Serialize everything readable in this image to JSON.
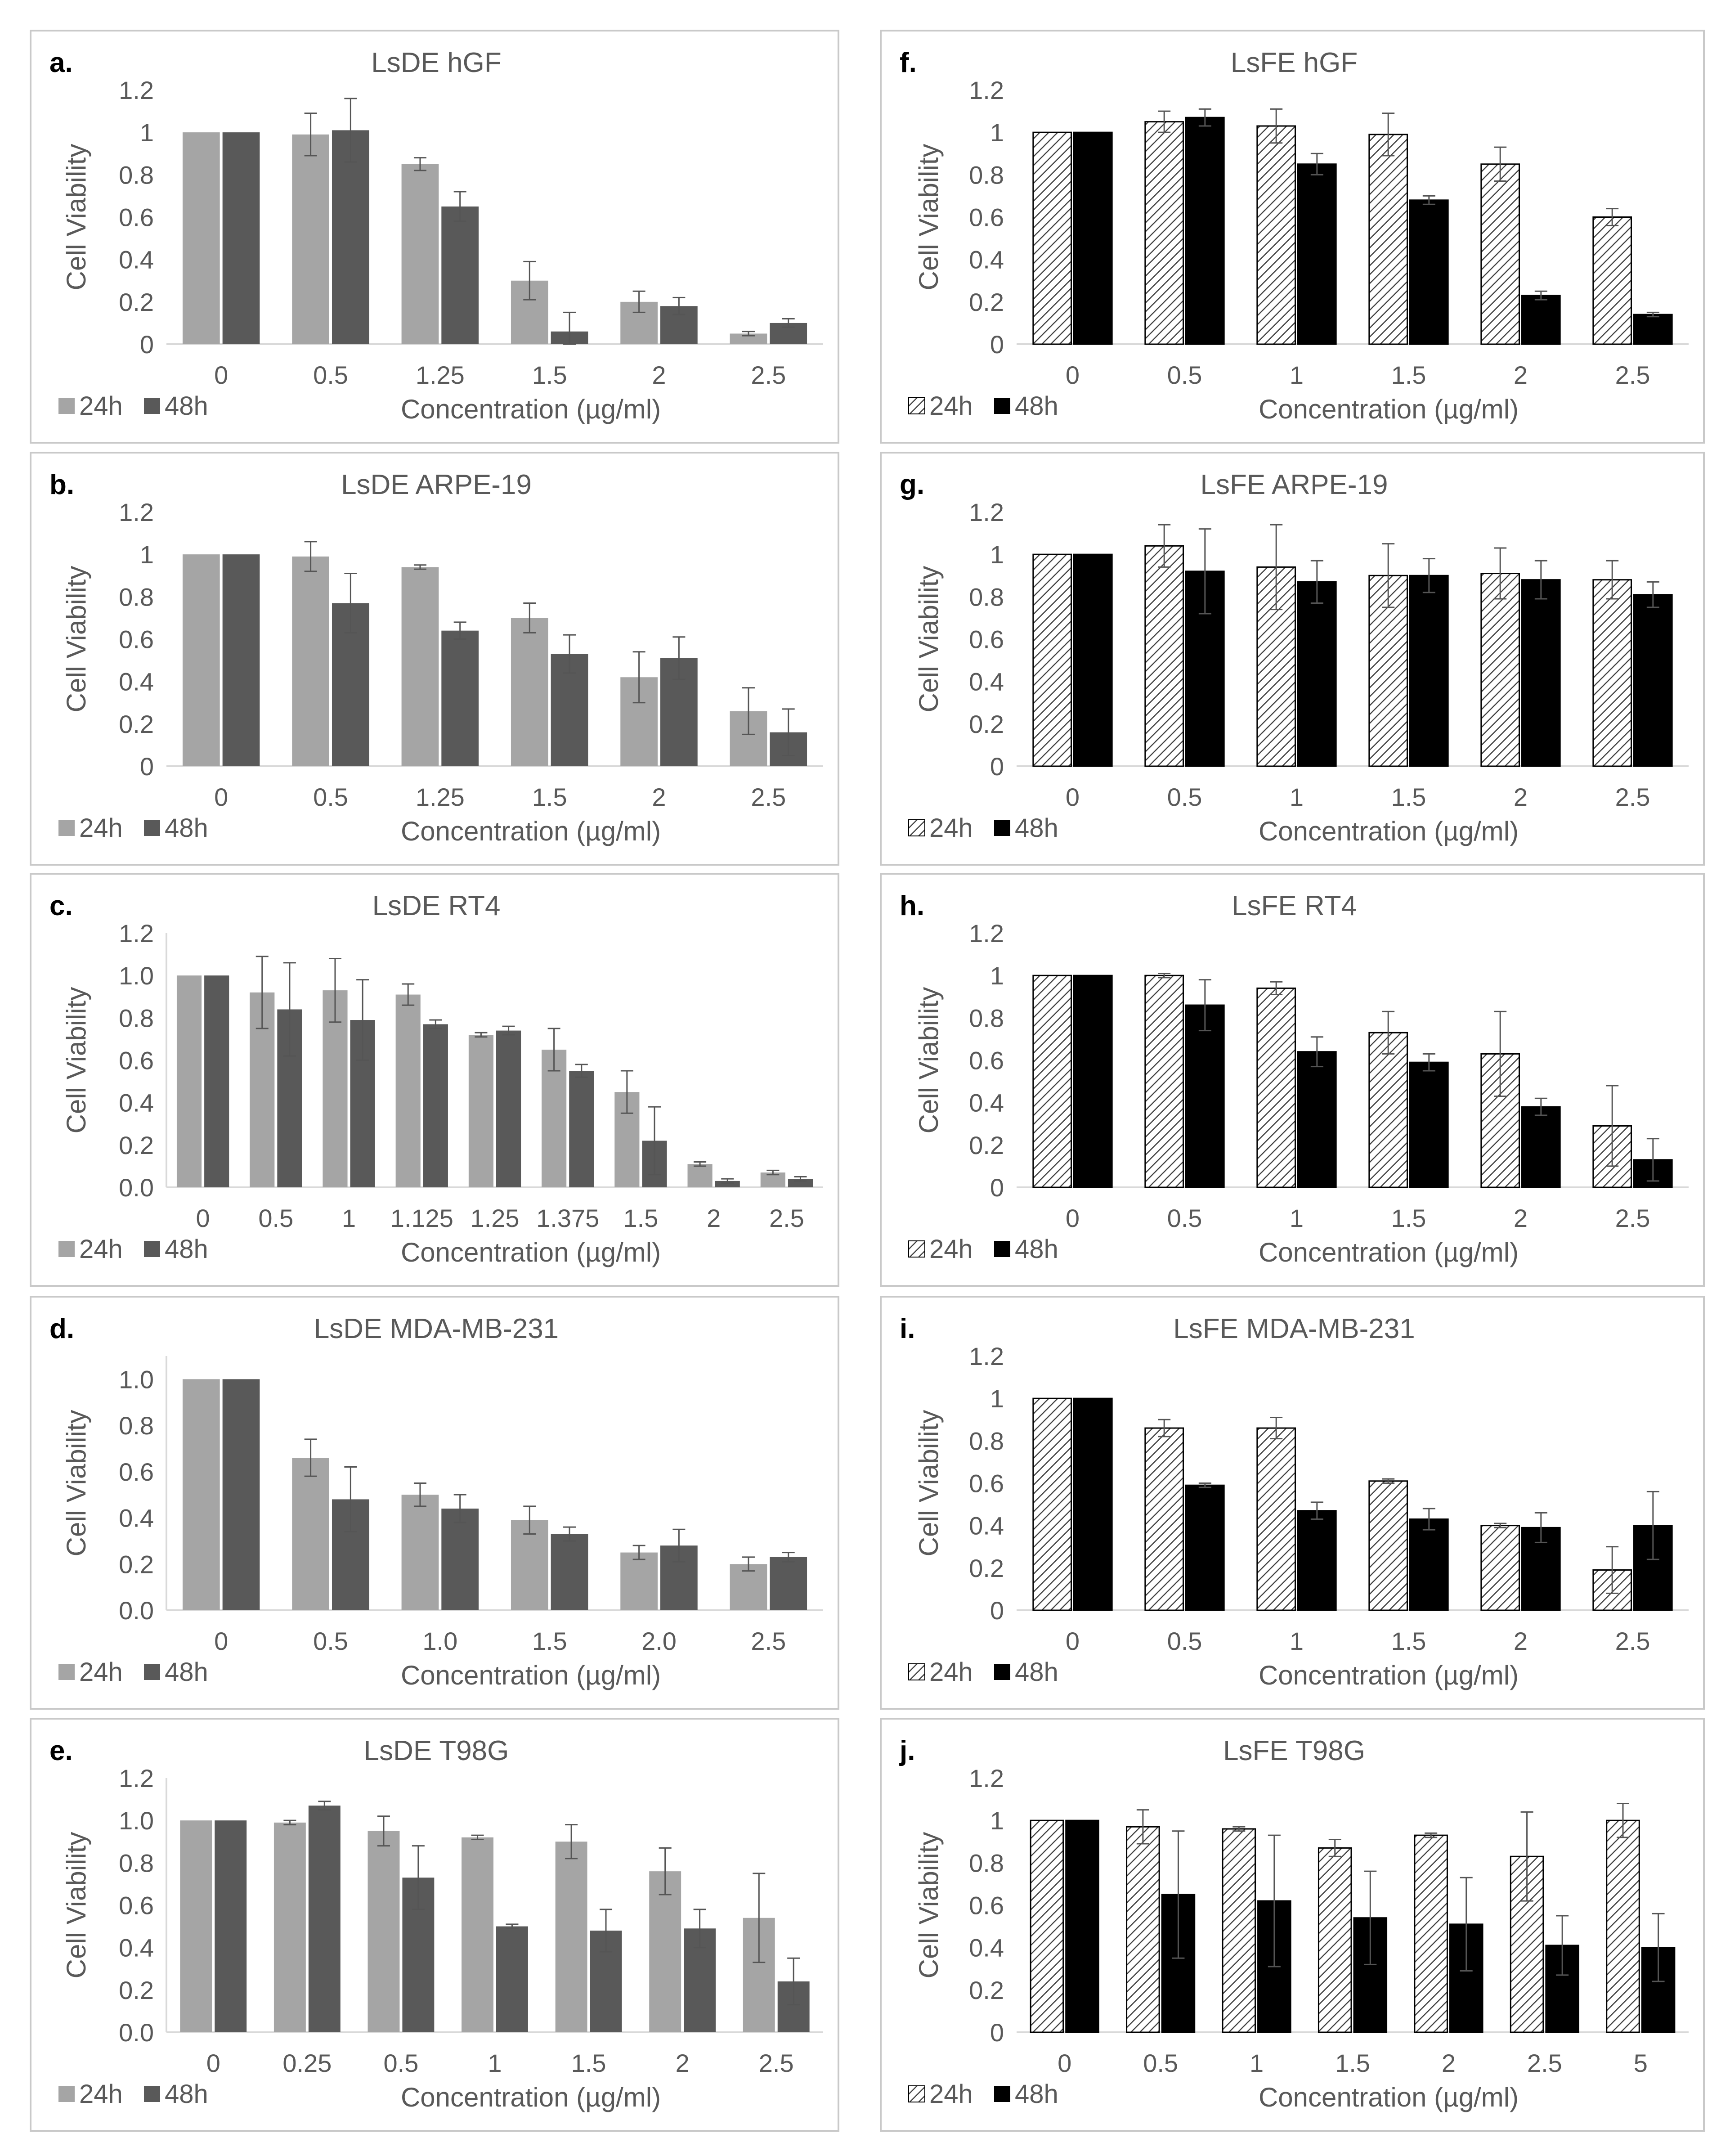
{
  "colors": {
    "dark_24h": "#a5a5a5",
    "dark_48h": "#595959",
    "fe_24h_hatch": "#404040",
    "fe_48h": "#000000",
    "axis_text": "#595959",
    "gridline": "#d9d9d9",
    "panel_border": "#c9c9c9",
    "error_bar": "#555555"
  },
  "chart_data": [
    {
      "id": "a",
      "panel_letter": "a.",
      "type": "bar",
      "style": "solid",
      "title": "LsDE hGF",
      "xlabel": "Concentration (µg/ml)",
      "ylabel": "Cell Viability",
      "categories": [
        "0",
        "0.5",
        "1.25",
        "1.5",
        "2",
        "2.5"
      ],
      "yticks": [
        "0",
        "0.2",
        "0.4",
        "0.6",
        "0.8",
        "1",
        "1.2"
      ],
      "ylim": [
        0,
        1.2
      ],
      "series": [
        {
          "name": "24h",
          "values": [
            1.0,
            0.99,
            0.85,
            0.3,
            0.2,
            0.05
          ],
          "errors": [
            0,
            0.1,
            0.03,
            0.09,
            0.05,
            0.01
          ]
        },
        {
          "name": "48h",
          "values": [
            1.0,
            1.01,
            0.65,
            0.06,
            0.18,
            0.1
          ],
          "errors": [
            0,
            0.15,
            0.07,
            0.09,
            0.04,
            0.02
          ]
        }
      ]
    },
    {
      "id": "b",
      "panel_letter": "b.",
      "type": "bar",
      "style": "solid",
      "title": "LsDE ARPE-19",
      "xlabel": "Concentration (µg/ml)",
      "ylabel": "Cell Viability",
      "categories": [
        "0",
        "0.5",
        "1.25",
        "1.5",
        "2",
        "2.5"
      ],
      "yticks": [
        "0",
        "0.2",
        "0.4",
        "0.6",
        "0.8",
        "1",
        "1.2"
      ],
      "ylim": [
        0,
        1.2
      ],
      "series": [
        {
          "name": "24h",
          "values": [
            1.0,
            0.99,
            0.94,
            0.7,
            0.42,
            0.26
          ],
          "errors": [
            0,
            0.07,
            0.01,
            0.07,
            0.12,
            0.11
          ]
        },
        {
          "name": "48h",
          "values": [
            1.0,
            0.77,
            0.64,
            0.53,
            0.51,
            0.16
          ],
          "errors": [
            0,
            0.14,
            0.04,
            0.09,
            0.1,
            0.11
          ]
        }
      ]
    },
    {
      "id": "c",
      "panel_letter": "c.",
      "type": "bar",
      "style": "solid",
      "title": "LsDE RT4",
      "xlabel": "Concentration (µg/ml)",
      "ylabel": "Cell Viability",
      "categories": [
        "0",
        "0.5",
        "1",
        "1.125",
        "1.25",
        "1.375",
        "1.5",
        "2",
        "2.5"
      ],
      "yticks": [
        "0.0",
        "0.2",
        "0.4",
        "0.6",
        "0.8",
        "1.0",
        "1.2"
      ],
      "ylim": [
        0,
        1.2
      ],
      "series": [
        {
          "name": "24h",
          "values": [
            1.0,
            0.92,
            0.93,
            0.91,
            0.72,
            0.65,
            0.45,
            0.11,
            0.07
          ],
          "errors": [
            0,
            0.17,
            0.15,
            0.05,
            0.01,
            0.1,
            0.1,
            0.01,
            0.01
          ]
        },
        {
          "name": "48h",
          "values": [
            1.0,
            0.84,
            0.79,
            0.77,
            0.74,
            0.55,
            0.22,
            0.03,
            0.04
          ],
          "errors": [
            0,
            0.22,
            0.19,
            0.02,
            0.02,
            0.03,
            0.16,
            0.01,
            0.01
          ]
        }
      ]
    },
    {
      "id": "d",
      "panel_letter": "d.",
      "type": "bar",
      "style": "solid",
      "title": "LsDE MDA-MB-231",
      "xlabel": "Concentration (µg/ml)",
      "ylabel": "Cell Viability",
      "categories": [
        "0",
        "0.5",
        "1.0",
        "1.5",
        "2.0",
        "2.5"
      ],
      "yticks": [
        "0.0",
        "0.2",
        "0.4",
        "0.6",
        "0.8",
        "1.0"
      ],
      "ylim": [
        0,
        1.1
      ],
      "series": [
        {
          "name": "24h",
          "values": [
            1.0,
            0.66,
            0.5,
            0.39,
            0.25,
            0.2
          ],
          "errors": [
            0,
            0.08,
            0.05,
            0.06,
            0.03,
            0.03
          ]
        },
        {
          "name": "48h",
          "values": [
            1.0,
            0.48,
            0.44,
            0.33,
            0.28,
            0.23
          ],
          "errors": [
            0,
            0.14,
            0.06,
            0.03,
            0.07,
            0.02
          ]
        }
      ]
    },
    {
      "id": "e",
      "panel_letter": "e.",
      "type": "bar",
      "style": "solid",
      "title": "LsDE T98G",
      "xlabel": "Concentration (µg/ml)",
      "ylabel": "Cell Viability",
      "categories": [
        "0",
        "0.25",
        "0.5",
        "1",
        "1.5",
        "2",
        "2.5"
      ],
      "yticks": [
        "0.0",
        "0.2",
        "0.4",
        "0.6",
        "0.8",
        "1.0",
        "1.2"
      ],
      "ylim": [
        0,
        1.2
      ],
      "series": [
        {
          "name": "24h",
          "values": [
            1.0,
            0.99,
            0.95,
            0.92,
            0.9,
            0.76,
            0.54
          ],
          "errors": [
            0,
            0.01,
            0.07,
            0.01,
            0.08,
            0.11,
            0.21
          ]
        },
        {
          "name": "48h",
          "values": [
            1.0,
            1.07,
            0.73,
            0.5,
            0.48,
            0.49,
            0.24
          ],
          "errors": [
            0,
            0.02,
            0.15,
            0.01,
            0.1,
            0.09,
            0.11
          ]
        }
      ]
    },
    {
      "id": "f",
      "panel_letter": "f.",
      "type": "bar",
      "style": "hatched",
      "title": "LsFE hGF",
      "xlabel": "Concentration (µg/ml)",
      "ylabel": "Cell Viability",
      "categories": [
        "0",
        "0.5",
        "1",
        "1.5",
        "2",
        "2.5"
      ],
      "yticks": [
        "0",
        "0.2",
        "0.4",
        "0.6",
        "0.8",
        "1",
        "1.2"
      ],
      "ylim": [
        0,
        1.2
      ],
      "series": [
        {
          "name": "24h",
          "values": [
            1.0,
            1.05,
            1.03,
            0.99,
            0.85,
            0.6
          ],
          "errors": [
            0,
            0.05,
            0.08,
            0.1,
            0.08,
            0.04
          ]
        },
        {
          "name": "48h",
          "values": [
            1.0,
            1.07,
            0.85,
            0.68,
            0.23,
            0.14
          ],
          "errors": [
            0,
            0.04,
            0.05,
            0.02,
            0.02,
            0.01
          ]
        }
      ]
    },
    {
      "id": "g",
      "panel_letter": "g.",
      "type": "bar",
      "style": "hatched",
      "title": "LsFE ARPE-19",
      "xlabel": "Concentration (µg/ml)",
      "ylabel": "Cell Viability",
      "categories": [
        "0",
        "0.5",
        "1",
        "1.5",
        "2",
        "2.5"
      ],
      "yticks": [
        "0",
        "0.2",
        "0.4",
        "0.6",
        "0.8",
        "1",
        "1.2"
      ],
      "ylim": [
        0,
        1.2
      ],
      "series": [
        {
          "name": "24h",
          "values": [
            1.0,
            1.04,
            0.94,
            0.9,
            0.91,
            0.88
          ],
          "errors": [
            0,
            0.1,
            0.2,
            0.15,
            0.12,
            0.09
          ]
        },
        {
          "name": "48h",
          "values": [
            1.0,
            0.92,
            0.87,
            0.9,
            0.88,
            0.81
          ],
          "errors": [
            0,
            0.2,
            0.1,
            0.08,
            0.09,
            0.06
          ]
        }
      ]
    },
    {
      "id": "h",
      "panel_letter": "h.",
      "type": "bar",
      "style": "hatched",
      "title": "LsFE RT4",
      "xlabel": "Concentration (µg/ml)",
      "ylabel": "Cell Viability",
      "categories": [
        "0",
        "0.5",
        "1",
        "1.5",
        "2",
        "2.5"
      ],
      "yticks": [
        "0",
        "0.2",
        "0.4",
        "0.6",
        "0.8",
        "1",
        "1.2"
      ],
      "ylim": [
        0,
        1.2
      ],
      "series": [
        {
          "name": "24h",
          "values": [
            1.0,
            1.0,
            0.94,
            0.73,
            0.63,
            0.29
          ],
          "errors": [
            0,
            0.01,
            0.03,
            0.1,
            0.2,
            0.19
          ]
        },
        {
          "name": "48h",
          "values": [
            1.0,
            0.86,
            0.64,
            0.59,
            0.38,
            0.13
          ],
          "errors": [
            0,
            0.12,
            0.07,
            0.04,
            0.04,
            0.1
          ]
        }
      ]
    },
    {
      "id": "i",
      "panel_letter": "i.",
      "type": "bar",
      "style": "hatched",
      "title": "LsFE MDA-MB-231",
      "xlabel": "Concentration (µg/ml)",
      "ylabel": "Cell Viability",
      "categories": [
        "0",
        "0.5",
        "1",
        "1.5",
        "2",
        "2.5"
      ],
      "yticks": [
        "0",
        "0.2",
        "0.4",
        "0.6",
        "0.8",
        "1",
        "1.2"
      ],
      "ylim": [
        0,
        1.2
      ],
      "series": [
        {
          "name": "24h",
          "values": [
            1.0,
            0.86,
            0.86,
            0.61,
            0.4,
            0.19
          ],
          "errors": [
            0,
            0.04,
            0.05,
            0.01,
            0.01,
            0.11
          ]
        },
        {
          "name": "48h",
          "values": [
            1.0,
            0.59,
            0.47,
            0.43,
            0.39,
            0.4
          ],
          "errors": [
            0,
            0.01,
            0.04,
            0.05,
            0.07,
            0.16
          ]
        }
      ]
    },
    {
      "id": "j",
      "panel_letter": "j.",
      "type": "bar",
      "style": "hatched",
      "title": "LsFE T98G",
      "xlabel": "Concentration (µg/ml)",
      "ylabel": "Cell Viability",
      "categories": [
        "0",
        "0.5",
        "1",
        "1.5",
        "2",
        "2.5",
        "5"
      ],
      "yticks": [
        "0",
        "0.2",
        "0.4",
        "0.6",
        "0.8",
        "1",
        "1.2"
      ],
      "ylim": [
        0,
        1.2
      ],
      "series": [
        {
          "name": "24h",
          "values": [
            1.0,
            0.97,
            0.96,
            0.87,
            0.93,
            0.83,
            1.0
          ],
          "errors": [
            0,
            0.08,
            0.01,
            0.04,
            0.01,
            0.21,
            0.08
          ]
        },
        {
          "name": "48h",
          "values": [
            1.0,
            0.65,
            0.62,
            0.54,
            0.51,
            0.41,
            0.4
          ],
          "errors": [
            0,
            0.3,
            0.31,
            0.22,
            0.22,
            0.14,
            0.16
          ]
        }
      ]
    }
  ]
}
